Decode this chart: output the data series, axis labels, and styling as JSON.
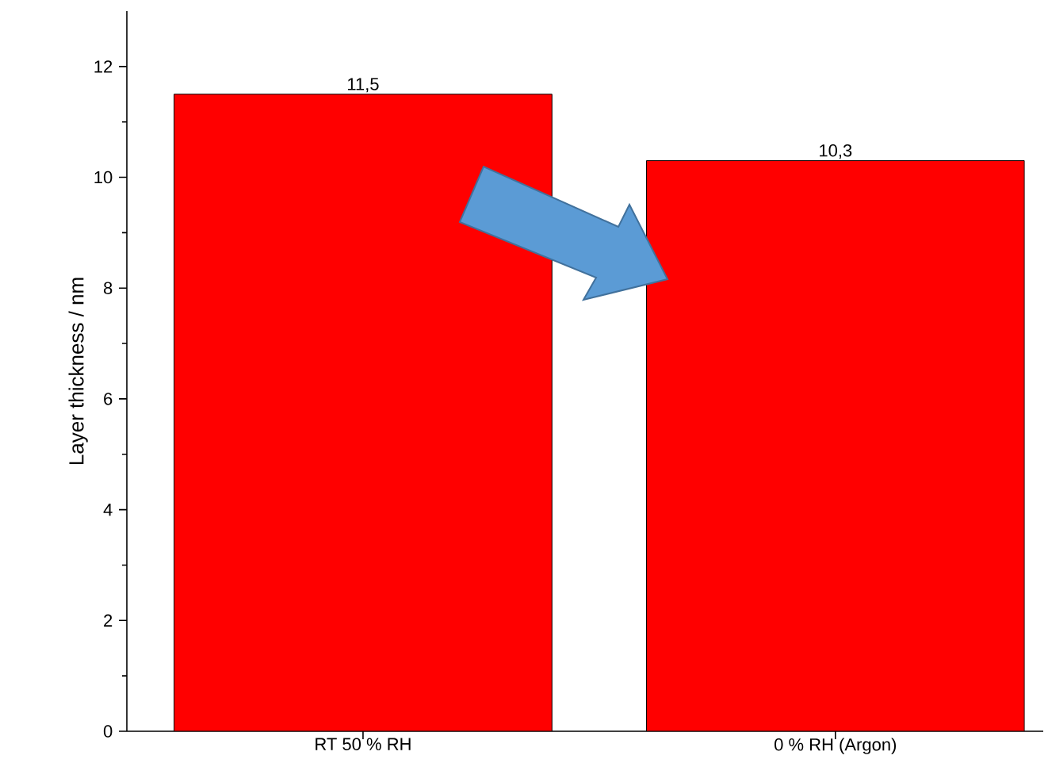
{
  "chart_data": {
    "type": "bar",
    "ylabel": "Layer thickness / nm",
    "categories": [
      "RT 50 % RH",
      "0 % RH (Argon)"
    ],
    "values": [
      11.5,
      10.3
    ],
    "color": "#ff0000",
    "value_labels": [
      "11,5",
      "10,3"
    ],
    "ylim": [
      0,
      13
    ],
    "yticks": [
      0,
      2,
      4,
      6,
      8,
      10,
      12
    ],
    "grid": false
  }
}
